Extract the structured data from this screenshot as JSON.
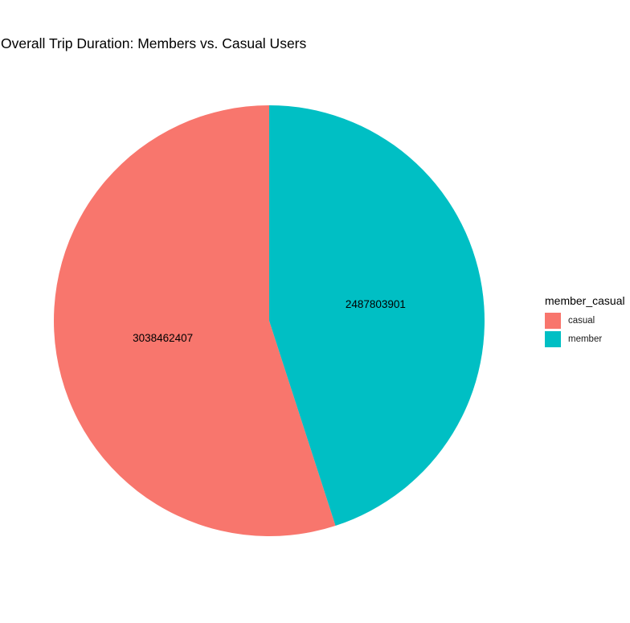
{
  "chart_data": {
    "type": "pie",
    "title": "Overall Trip Duration: Members vs. Casual Users",
    "categories": [
      "casual",
      "member"
    ],
    "values": [
      3038462407,
      2487803901
    ],
    "data_labels": [
      "3038462407",
      "2487803901"
    ],
    "colors": [
      "#F8766D",
      "#00BFC4"
    ],
    "legend": {
      "title": "member_casual",
      "placement": "right",
      "entries": [
        "casual",
        "member"
      ]
    },
    "grid": false,
    "direction": "counter-clockwise from 12 o'clock"
  }
}
